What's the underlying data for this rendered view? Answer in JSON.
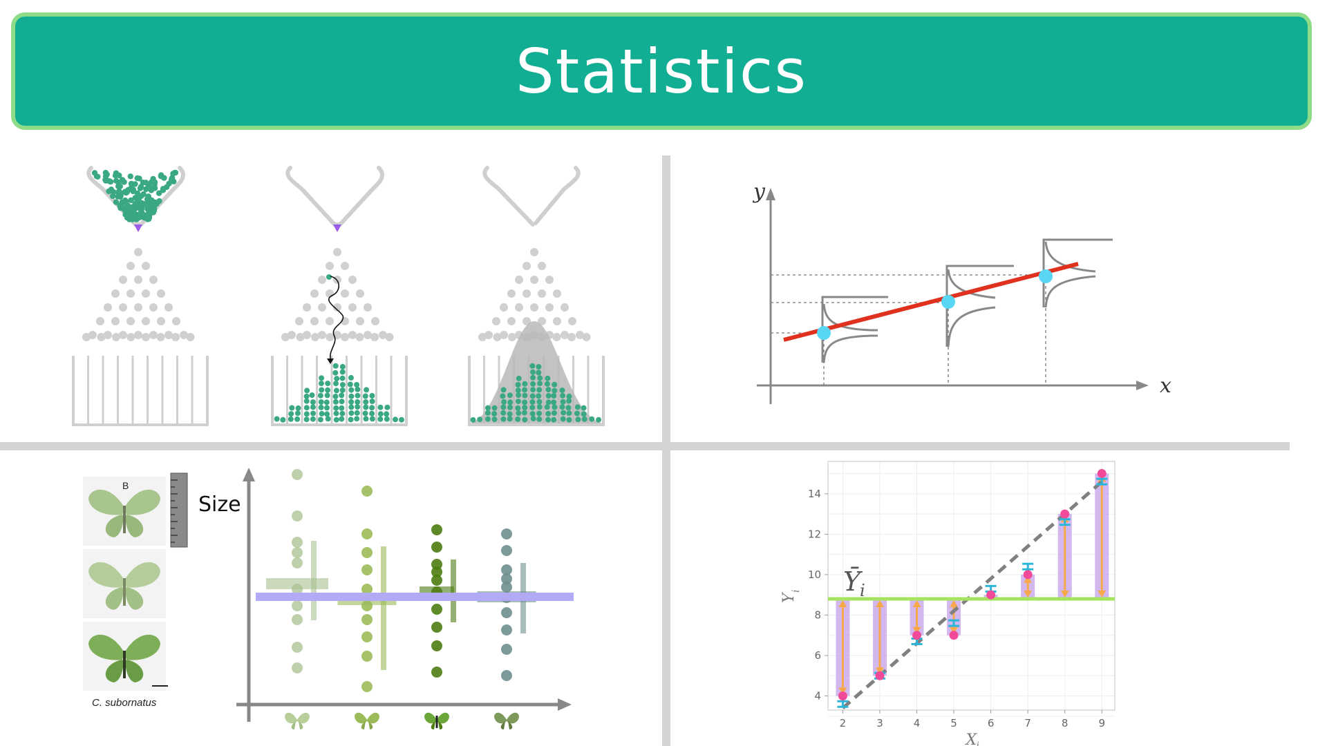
{
  "header": {
    "title": "Statistics"
  },
  "galton_panel": {
    "stages": [
      "empty",
      "ball-path",
      "distribution"
    ]
  },
  "regression_panel": {
    "x_label": "x",
    "y_label": "y",
    "colors": {
      "line": "#e0301e",
      "points": "#5ad6f5",
      "axis": "#888888"
    }
  },
  "butterfly_panel": {
    "size_label": "Size",
    "specimen_caption": "C. subornatus",
    "specimen_letter": "B",
    "group_colors": [
      "#a8c090",
      "#9bbb59",
      "#4e7d12",
      "#6f8f8f"
    ],
    "mean_line_color": "#b3aaf5"
  },
  "residual_panel": {
    "mean_label": "Ȳ",
    "mean_label_sub": "i",
    "x_label": "X",
    "x_label_sub": "i",
    "y_label": "Y",
    "y_label_sub": "i",
    "x_ticks": [
      "2",
      "3",
      "4",
      "5",
      "6",
      "7",
      "8",
      "9"
    ],
    "y_ticks": [
      "4",
      "6",
      "8",
      "10",
      "12",
      "14"
    ],
    "chart_data": {
      "type": "scatter",
      "x": [
        2,
        3,
        4,
        5,
        6,
        7,
        8,
        9
      ],
      "observed": [
        4.0,
        5.0,
        7.0,
        7.0,
        9.0,
        10.0,
        13.0,
        15.0
      ],
      "fitted": [
        3.6,
        5.0,
        6.7,
        7.6,
        9.3,
        10.4,
        12.6,
        14.6
      ],
      "mean_y": 8.8,
      "xlim": [
        1.6,
        9.35
      ],
      "ylim": [
        3.3,
        15.6
      ]
    }
  }
}
